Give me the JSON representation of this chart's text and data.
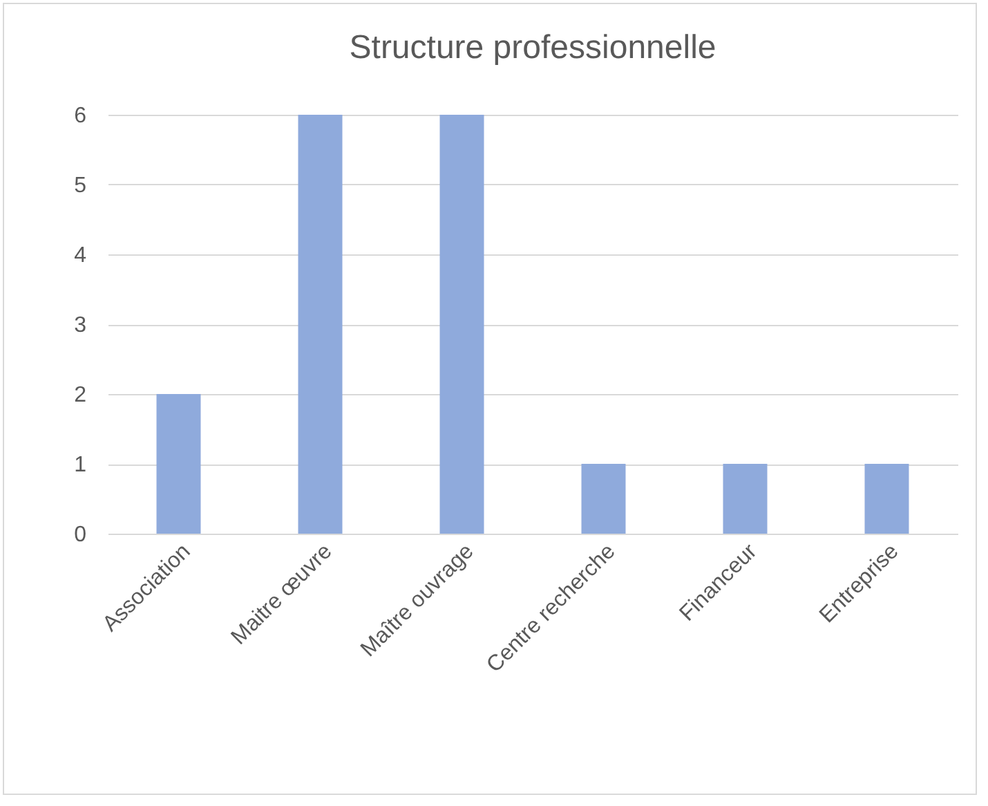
{
  "chart_data": {
    "type": "bar",
    "title": "Structure professionnelle",
    "categories": [
      "Association",
      "Maitre œuvre",
      "Maître ouvrage",
      "Centre recherche",
      "Financeur",
      "Entreprise"
    ],
    "values": [
      2,
      6,
      6,
      1,
      1,
      1
    ],
    "color": "#8faadc",
    "ylim": [
      0,
      6
    ],
    "yticks": [
      0,
      1,
      2,
      3,
      4,
      5,
      6
    ],
    "grid": "y"
  }
}
